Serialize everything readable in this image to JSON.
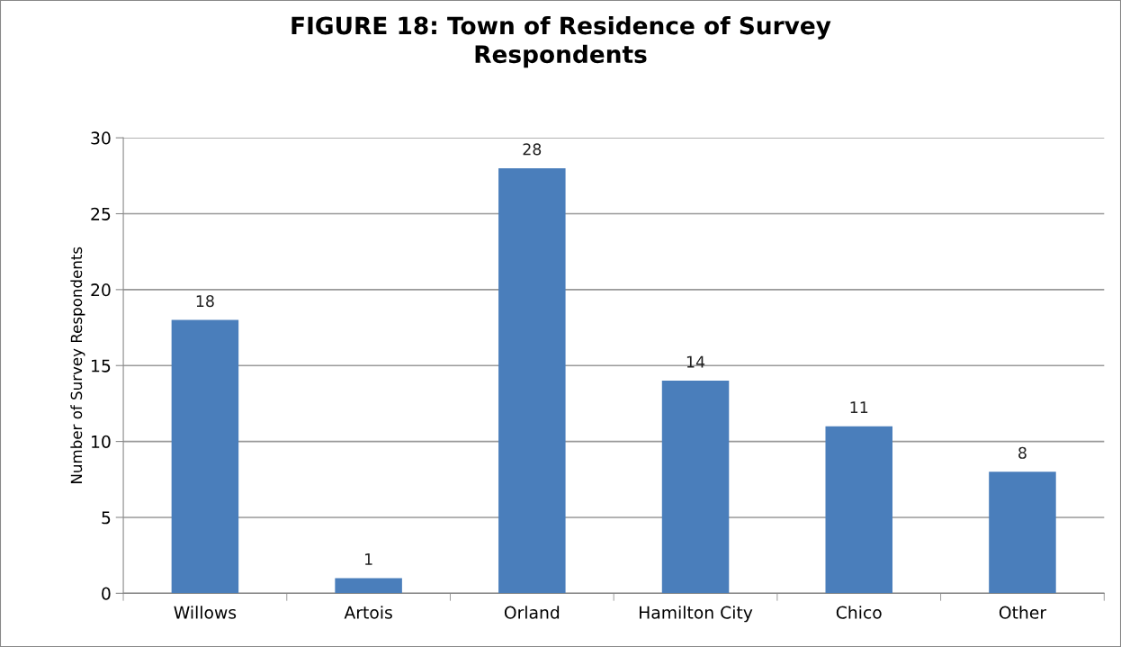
{
  "chart_data": {
    "type": "bar",
    "title": "FIGURE 18: Town of Residence of Survey\nRespondents",
    "ylabel": "Number of Survey Respondents",
    "categories": [
      "Willows",
      "Artois",
      "Orland",
      "Hamilton City",
      "Chico",
      "Other"
    ],
    "values": [
      18,
      1,
      28,
      14,
      11,
      8
    ],
    "color": "#4a7ebb",
    "ylim": [
      0,
      30
    ],
    "yticks": [
      0,
      5,
      10,
      15,
      20,
      25,
      30
    ],
    "grid": "y",
    "data_labels": true,
    "legend": false
  }
}
